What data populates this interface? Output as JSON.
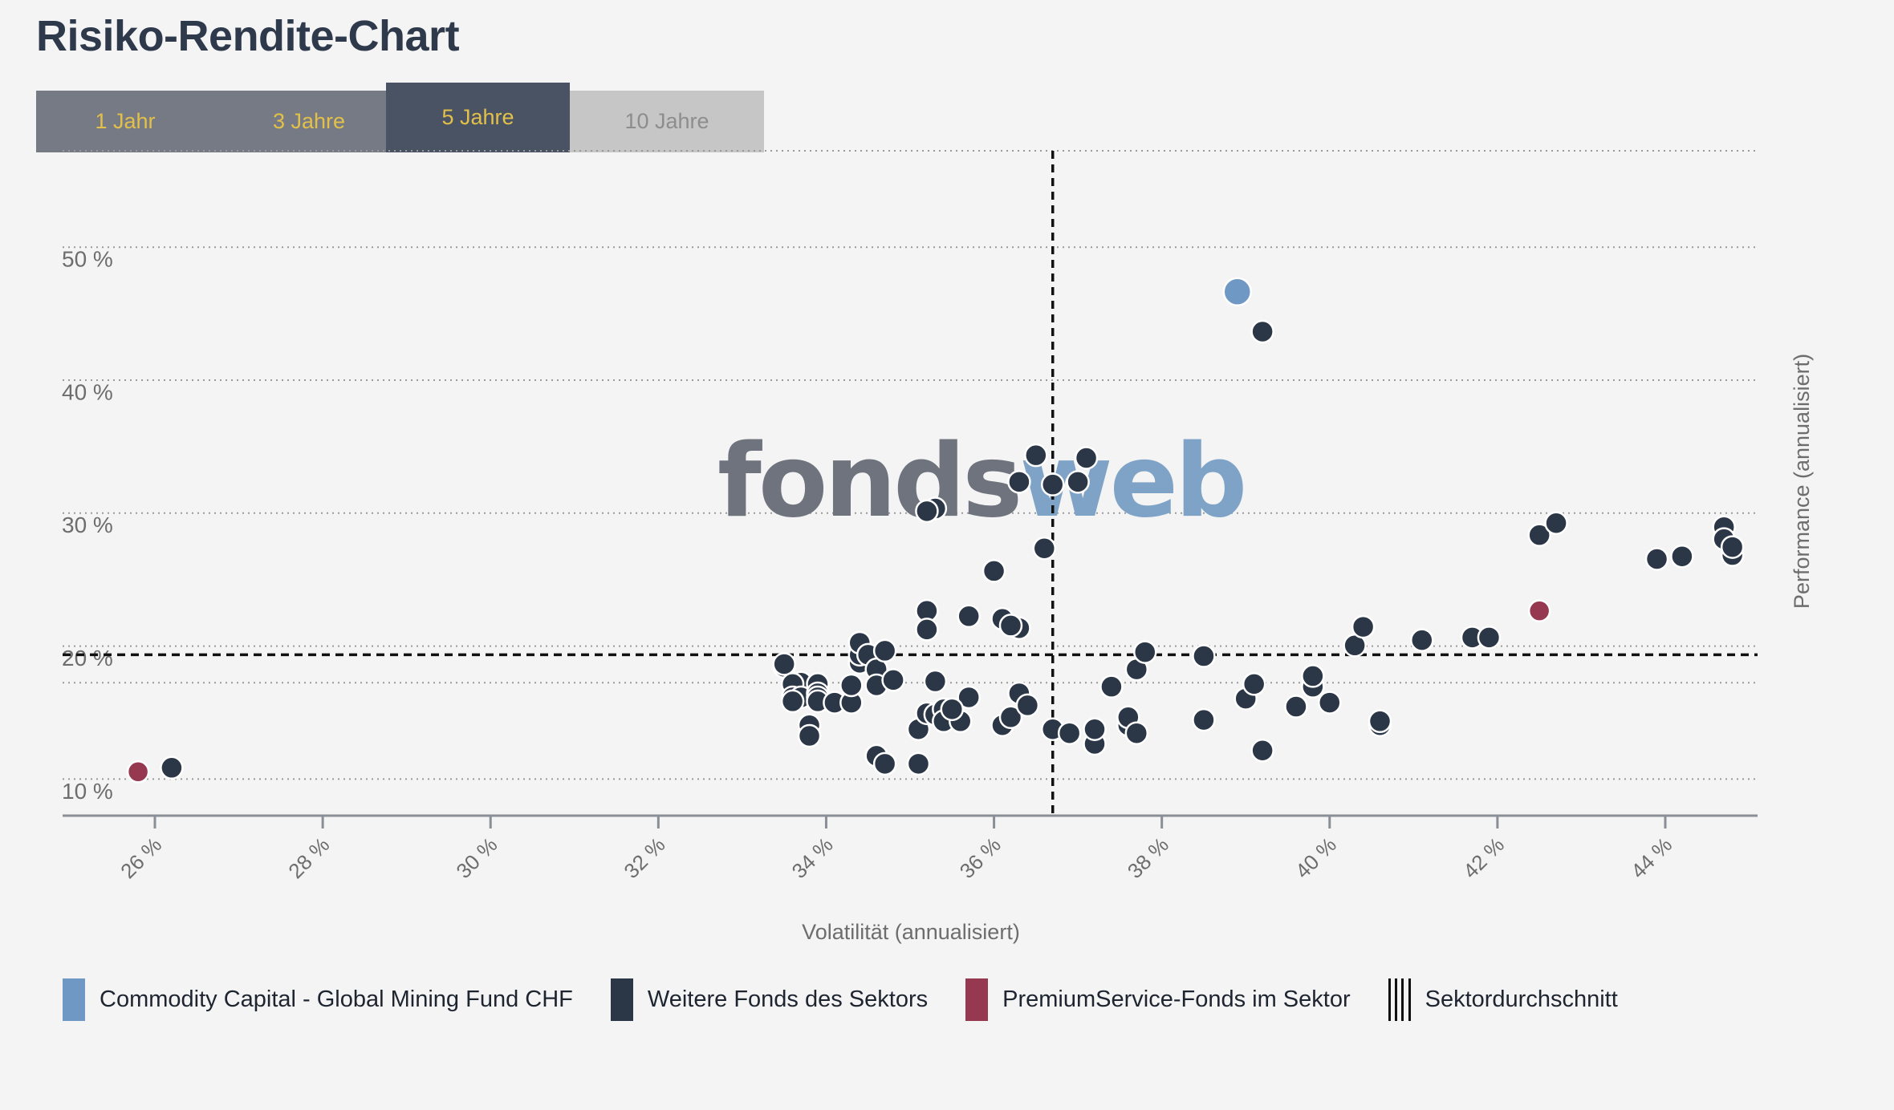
{
  "page": {
    "title": "Risiko-Rendite-Chart"
  },
  "tabs": [
    "1 Jahr",
    "3 Jahre",
    "5 Jahre",
    "10 Jahre"
  ],
  "watermark": {
    "part1": "fonds",
    "part2": "web",
    "color1": "#6e737d",
    "color2": "#7fa3c7"
  },
  "colors": {
    "fund": "#7098c4",
    "sector": "#2b3646",
    "premium": "#96384f"
  },
  "legend": [
    {
      "label": "Commodity Capital - Global Mining Fund CHF",
      "swatch": "fund"
    },
    {
      "label": "Weitere Fonds des Sektors",
      "swatch": "sector"
    },
    {
      "label": "PremiumService-Fonds im Sektor",
      "swatch": "premium"
    },
    {
      "label": "Sektordurchschnitt",
      "swatch": "lines"
    }
  ],
  "chart_data": {
    "type": "scatter",
    "title": "",
    "xlabel": "Volatilität (annualisiert)",
    "ylabel": "Performance (annualisiert)",
    "xlim": [
      24.9,
      45.1
    ],
    "ylim": [
      8.0,
      58.0
    ],
    "x_ticks": [
      "26 %",
      "28 %",
      "30 %",
      "32 %",
      "34 %",
      "36 %",
      "38 %",
      "40 %",
      "42 %",
      "44 %"
    ],
    "x_tick_values": [
      26,
      28,
      30,
      32,
      34,
      36,
      38,
      40,
      42,
      44
    ],
    "y_ticks": [
      "10 %",
      "20 %",
      "30 %",
      "40 %",
      "50 %"
    ],
    "y_tick_values": [
      10,
      20,
      30,
      40,
      50
    ],
    "grid": "horizontal dotted",
    "sector_average": {
      "x": 36.7,
      "y": 20.1
    },
    "series": [
      {
        "name": "Commodity Capital - Global Mining Fund CHF",
        "role": "fund",
        "points": [
          [
            38.9,
            47.4
          ]
        ]
      },
      {
        "name": "PremiumService-Fonds im Sektor",
        "role": "premium",
        "points": [
          [
            25.8,
            11.3
          ],
          [
            42.5,
            23.4
          ]
        ]
      },
      {
        "name": "Weitere Fonds des Sektors",
        "role": "sector",
        "points": [
          [
            26.2,
            11.6
          ],
          [
            39.2,
            44.4
          ],
          [
            36.5,
            35.1
          ],
          [
            37.1,
            34.9
          ],
          [
            36.3,
            33.1
          ],
          [
            36.7,
            32.9
          ],
          [
            37.0,
            33.1
          ],
          [
            35.3,
            31.1
          ],
          [
            35.2,
            30.9
          ],
          [
            36.6,
            28.1
          ],
          [
            36.0,
            26.4
          ],
          [
            35.7,
            23.0
          ],
          [
            35.2,
            23.4
          ],
          [
            35.2,
            22.0
          ],
          [
            36.1,
            22.8
          ],
          [
            36.3,
            22.1
          ],
          [
            36.2,
            22.3
          ],
          [
            33.5,
            19.2
          ],
          [
            33.5,
            19.4
          ],
          [
            33.7,
            18.0
          ],
          [
            33.6,
            17.9
          ],
          [
            33.6,
            16.9
          ],
          [
            33.7,
            16.9
          ],
          [
            33.6,
            16.6
          ],
          [
            33.9,
            17.9
          ],
          [
            33.9,
            17.2
          ],
          [
            33.9,
            16.9
          ],
          [
            33.9,
            16.6
          ],
          [
            34.1,
            16.5
          ],
          [
            34.3,
            16.5
          ],
          [
            34.3,
            17.8
          ],
          [
            34.4,
            19.5
          ],
          [
            34.4,
            20.1
          ],
          [
            34.4,
            21.0
          ],
          [
            34.5,
            20.1
          ],
          [
            34.6,
            19.0
          ],
          [
            34.6,
            17.8
          ],
          [
            34.7,
            20.4
          ],
          [
            34.8,
            18.2
          ],
          [
            33.8,
            14.8
          ],
          [
            33.8,
            14.0
          ],
          [
            34.6,
            12.5
          ],
          [
            34.7,
            11.9
          ],
          [
            35.1,
            11.9
          ],
          [
            35.1,
            14.5
          ],
          [
            35.2,
            15.7
          ],
          [
            35.3,
            18.1
          ],
          [
            35.3,
            15.6
          ],
          [
            35.4,
            16.0
          ],
          [
            35.4,
            15.1
          ],
          [
            35.6,
            15.1
          ],
          [
            35.7,
            16.9
          ],
          [
            35.5,
            16.0
          ],
          [
            36.1,
            14.8
          ],
          [
            36.2,
            15.4
          ],
          [
            36.3,
            17.2
          ],
          [
            36.4,
            16.3
          ],
          [
            36.7,
            14.5
          ],
          [
            36.9,
            14.2
          ],
          [
            37.2,
            13.4
          ],
          [
            37.2,
            14.5
          ],
          [
            37.4,
            17.7
          ],
          [
            37.6,
            14.8
          ],
          [
            37.6,
            15.4
          ],
          [
            37.7,
            14.2
          ],
          [
            37.7,
            19.0
          ],
          [
            37.8,
            20.3
          ],
          [
            38.5,
            15.2
          ],
          [
            38.5,
            20.0
          ],
          [
            39.0,
            16.8
          ],
          [
            39.1,
            17.9
          ],
          [
            39.2,
            12.9
          ],
          [
            39.6,
            16.2
          ],
          [
            39.8,
            17.7
          ],
          [
            39.8,
            18.5
          ],
          [
            40.0,
            16.5
          ],
          [
            40.3,
            20.8
          ],
          [
            40.4,
            22.2
          ],
          [
            40.6,
            14.8
          ],
          [
            40.6,
            15.1
          ],
          [
            41.1,
            21.2
          ],
          [
            41.7,
            21.4
          ],
          [
            41.9,
            21.4
          ],
          [
            42.5,
            29.1
          ],
          [
            42.7,
            30.0
          ],
          [
            43.9,
            27.3
          ],
          [
            44.2,
            27.5
          ],
          [
            44.7,
            29.7
          ],
          [
            44.7,
            28.8
          ],
          [
            44.8,
            27.6
          ],
          [
            44.8,
            28.2
          ]
        ]
      }
    ]
  }
}
